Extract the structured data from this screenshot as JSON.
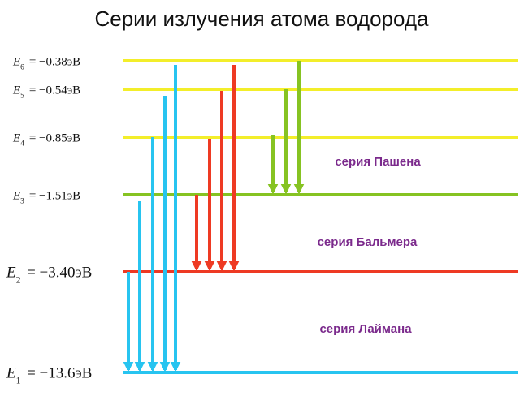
{
  "title": "Серии излучения атома водорода",
  "levels": [
    {
      "id": "E1",
      "label": "E",
      "sub": "1",
      "value": "= −13.6эB",
      "color": "#27c4f0"
    },
    {
      "id": "E2",
      "label": "E",
      "sub": "2",
      "value": "= −3.40эB",
      "color": "#ee3a23"
    },
    {
      "id": "E3",
      "label": "E",
      "sub": "3",
      "value": "= −1.51эB",
      "color": "#86c322"
    },
    {
      "id": "E4",
      "label": "E",
      "sub": "4",
      "value": "= −0.85эB",
      "color": "#f3ee2a"
    },
    {
      "id": "E5",
      "label": "E",
      "sub": "5",
      "value": "= −0.54эB",
      "color": "#f3ee2a"
    },
    {
      "id": "E6",
      "label": "E",
      "sub": "6",
      "value": "= −0.38эB",
      "color": "#f3ee2a"
    }
  ],
  "series": [
    {
      "id": "lyman",
      "label": "серия Лаймана",
      "to": "E1",
      "from": [
        "E2",
        "E3",
        "E4",
        "E5",
        "E6"
      ],
      "color": "#27c4f0"
    },
    {
      "id": "balmer",
      "label": "серия Бальмера",
      "to": "E2",
      "from": [
        "E3",
        "E4",
        "E5",
        "E6"
      ],
      "color": "#ee3a23"
    },
    {
      "id": "paschen",
      "label": "серия Пашена",
      "to": "E3",
      "from": [
        "E4",
        "E5",
        "E6"
      ],
      "color": "#86c322"
    }
  ],
  "colors": {
    "background": "#ffffff",
    "title": "#111111",
    "series_label": "#7b2a8c"
  }
}
